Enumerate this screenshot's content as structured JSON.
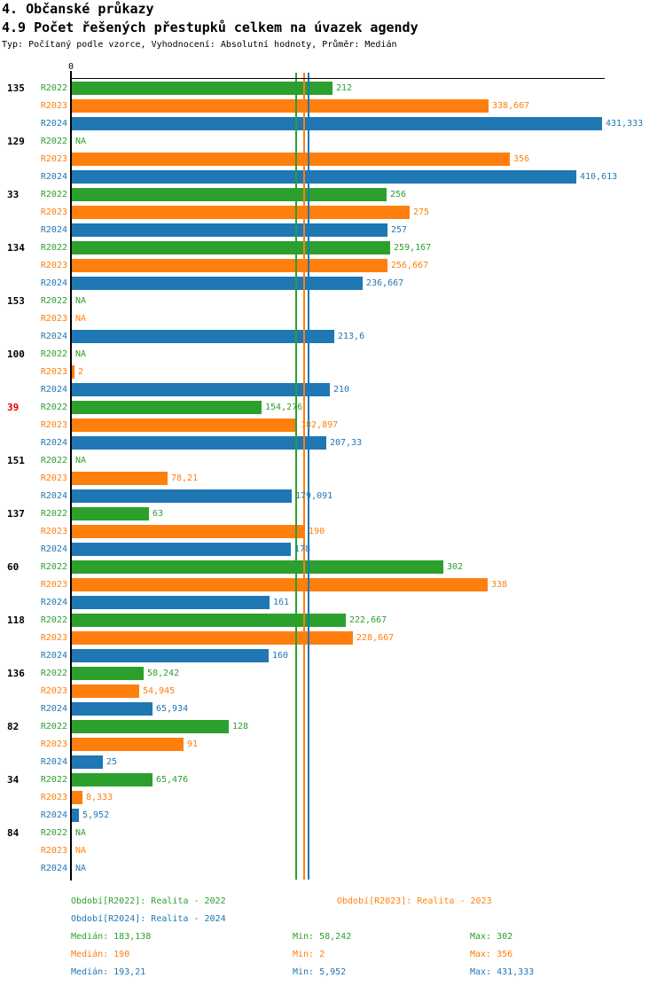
{
  "header": {
    "title1": "4. Občanské průkazy",
    "title2": "4.9 Počet řešených přestupků celkem na úvazek agendy",
    "subtitle": "Typ: Počítaný podle vzorce, Vyhodnocení: Absolutní hodnoty, Průměr: Medián"
  },
  "colors": {
    "r2022": "#2ca02c",
    "r2023": "#ff7f0e",
    "r2024": "#1f77b4",
    "highlighted_id": "#e00000",
    "axis": "#000000"
  },
  "chart_data": {
    "type": "bar",
    "orientation": "horizontal",
    "x_axis": {
      "origin_label": "0",
      "min": 0,
      "max": 431.333
    },
    "grid": false,
    "median_lines_shown": true,
    "series": [
      {
        "name": "R2022",
        "color": "#2ca02c",
        "median": 183.138
      },
      {
        "name": "R2023",
        "color": "#ff7f0e",
        "median": 190
      },
      {
        "name": "R2024",
        "color": "#1f77b4",
        "median": 193.21
      }
    ],
    "groups": [
      {
        "id": "135",
        "id_color": "#000000",
        "values": [
          212,
          338.667,
          431.333
        ],
        "labels": [
          "212",
          "338,667",
          "431,333"
        ]
      },
      {
        "id": "129",
        "id_color": "#000000",
        "values": [
          null,
          356,
          410.613
        ],
        "labels": [
          "NA",
          "356",
          "410,613"
        ]
      },
      {
        "id": "33",
        "id_color": "#000000",
        "values": [
          256,
          275,
          257
        ],
        "labels": [
          "256",
          "275",
          "257"
        ]
      },
      {
        "id": "134",
        "id_color": "#000000",
        "values": [
          259.167,
          256.667,
          236.667
        ],
        "labels": [
          "259,167",
          "256,667",
          "236,667"
        ]
      },
      {
        "id": "153",
        "id_color": "#000000",
        "values": [
          null,
          null,
          213.6
        ],
        "labels": [
          "NA",
          "NA",
          "213,6"
        ]
      },
      {
        "id": "100",
        "id_color": "#000000",
        "values": [
          null,
          2,
          210
        ],
        "labels": [
          "NA",
          "2",
          "210"
        ]
      },
      {
        "id": "39",
        "id_color": "#e00000",
        "values": [
          154.276,
          182.897,
          207.33
        ],
        "labels": [
          "154,276",
          "182,897",
          "207,33"
        ]
      },
      {
        "id": "151",
        "id_color": "#000000",
        "values": [
          null,
          78.21,
          179.091
        ],
        "labels": [
          "NA",
          "78,21",
          "179,091"
        ]
      },
      {
        "id": "137",
        "id_color": "#000000",
        "values": [
          63,
          190,
          178
        ],
        "labels": [
          "63",
          "190",
          "178"
        ]
      },
      {
        "id": "60",
        "id_color": "#000000",
        "values": [
          302,
          338,
          161
        ],
        "labels": [
          "302",
          "338",
          "161"
        ]
      },
      {
        "id": "118",
        "id_color": "#000000",
        "values": [
          222.667,
          228.667,
          160
        ],
        "labels": [
          "222,667",
          "228,667",
          "160"
        ]
      },
      {
        "id": "136",
        "id_color": "#000000",
        "values": [
          58.242,
          54.945,
          65.934
        ],
        "labels": [
          "58,242",
          "54,945",
          "65,934"
        ]
      },
      {
        "id": "82",
        "id_color": "#000000",
        "values": [
          128,
          91,
          25
        ],
        "labels": [
          "128",
          "91",
          "25"
        ]
      },
      {
        "id": "34",
        "id_color": "#000000",
        "values": [
          65.476,
          8.333,
          5.952
        ],
        "labels": [
          "65,476",
          "8,333",
          "5,952"
        ]
      },
      {
        "id": "84",
        "id_color": "#000000",
        "values": [
          null,
          null,
          null
        ],
        "labels": [
          "NA",
          "NA",
          "NA"
        ]
      }
    ]
  },
  "legend": {
    "periods": [
      {
        "label": "Období[R2022]: Realita - 2022"
      },
      {
        "label": "Období[R2023]: Realita - 2023"
      },
      {
        "label": "Období[R2024]: Realita - 2024"
      }
    ],
    "stats": [
      {
        "median": "Medián: 183,138",
        "min": "Min: 58,242",
        "max": "Max: 302"
      },
      {
        "median": "Medián: 190",
        "min": "Min: 2",
        "max": "Max: 356"
      },
      {
        "median": "Medián: 193,21",
        "min": "Min: 5,952",
        "max": "Max: 431,333"
      }
    ]
  }
}
